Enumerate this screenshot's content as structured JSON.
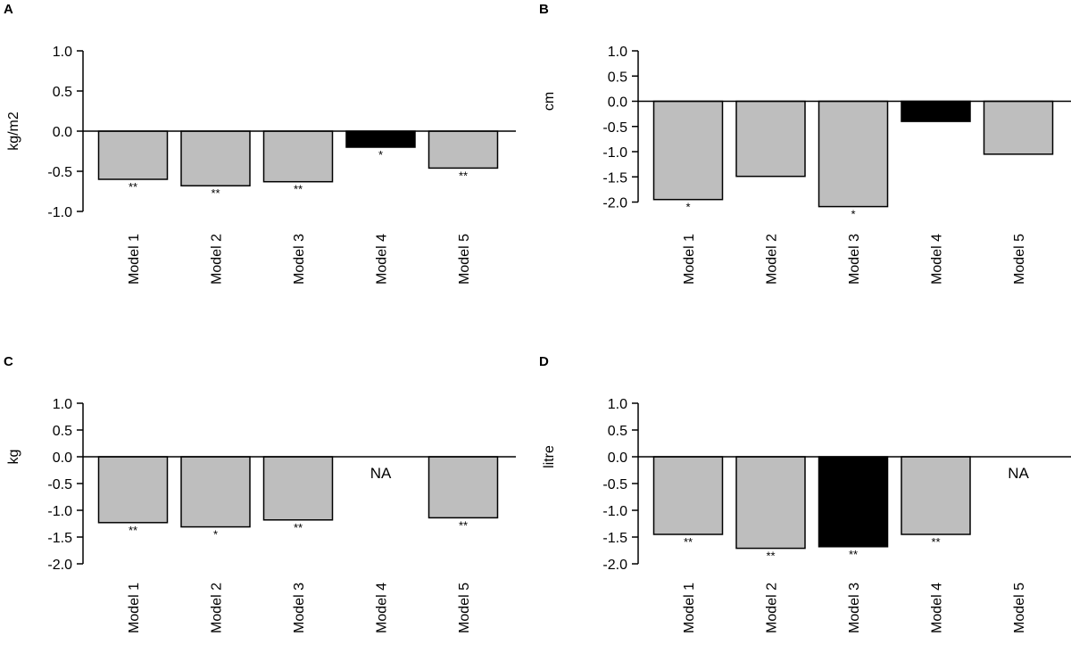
{
  "chart_data": [
    {
      "type": "bar",
      "panel_label": "A",
      "ylabel": "kg/m2",
      "ylim": [
        -1.0,
        1.0
      ],
      "yticks": [
        "1.0",
        "0.5",
        "0.0",
        "-0.5",
        "-1.0"
      ],
      "ytick_values": [
        1.0,
        0.5,
        0.0,
        -0.5,
        -1.0
      ],
      "categories": [
        "Model 1",
        "Model 2",
        "Model 3",
        "Model 4",
        "Model 5"
      ],
      "values": [
        -0.6,
        -0.68,
        -0.63,
        -0.2,
        -0.46
      ],
      "colors": [
        "#bebebe",
        "#bebebe",
        "#bebebe",
        "#000000",
        "#bebebe"
      ],
      "significance": [
        "**",
        "**",
        "**",
        "*",
        "**"
      ]
    },
    {
      "type": "bar",
      "panel_label": "B",
      "ylabel": "cm",
      "ylim": [
        -2.0,
        1.0
      ],
      "yticks": [
        "1.0",
        "0.5",
        "0.0",
        "-0.5",
        "-1.0",
        "-1.5",
        "-2.0"
      ],
      "ytick_values": [
        1.0,
        0.5,
        0.0,
        -0.5,
        -1.0,
        -1.5,
        -2.0
      ],
      "categories": [
        "Model 1",
        "Model 2",
        "Model 3",
        "Model 4",
        "Model 5"
      ],
      "values": [
        -1.95,
        -1.49,
        -2.09,
        -0.4,
        -1.05
      ],
      "colors": [
        "#bebebe",
        "#bebebe",
        "#bebebe",
        "#000000",
        "#bebebe"
      ],
      "significance": [
        "*",
        "",
        "*",
        "",
        ""
      ]
    },
    {
      "type": "bar",
      "panel_label": "C",
      "ylabel": "kg",
      "ylim": [
        -2.0,
        1.0
      ],
      "yticks": [
        "1.0",
        "0.5",
        "0.0",
        "-0.5",
        "-1.0",
        "-1.5",
        "-2.0"
      ],
      "ytick_values": [
        1.0,
        0.5,
        0.0,
        -0.5,
        -1.0,
        -1.5,
        -2.0
      ],
      "categories": [
        "Model 1",
        "Model 2",
        "Model 3",
        "Model 4",
        "Model 5"
      ],
      "values": [
        -1.23,
        -1.31,
        -1.18,
        null,
        -1.14
      ],
      "colors": [
        "#bebebe",
        "#bebebe",
        "#bebebe",
        "#bebebe",
        "#bebebe"
      ],
      "significance": [
        "**",
        "*",
        "**",
        "",
        "**"
      ],
      "missing_label": "NA"
    },
    {
      "type": "bar",
      "panel_label": "D",
      "ylabel": "litre",
      "ylim": [
        -2.0,
        1.0
      ],
      "yticks": [
        "1.0",
        "0.5",
        "0.0",
        "-0.5",
        "-1.0",
        "-1.5",
        "-2.0"
      ],
      "ytick_values": [
        1.0,
        0.5,
        0.0,
        -0.5,
        -1.0,
        -1.5,
        -2.0
      ],
      "categories": [
        "Model 1",
        "Model 2",
        "Model 3",
        "Model 4",
        "Model 5"
      ],
      "values": [
        -1.45,
        -1.71,
        -1.68,
        -1.45,
        null
      ],
      "colors": [
        "#bebebe",
        "#bebebe",
        "#000000",
        "#bebebe",
        "#bebebe"
      ],
      "significance": [
        "**",
        "**",
        "**",
        "**",
        ""
      ],
      "missing_label": "NA"
    }
  ]
}
